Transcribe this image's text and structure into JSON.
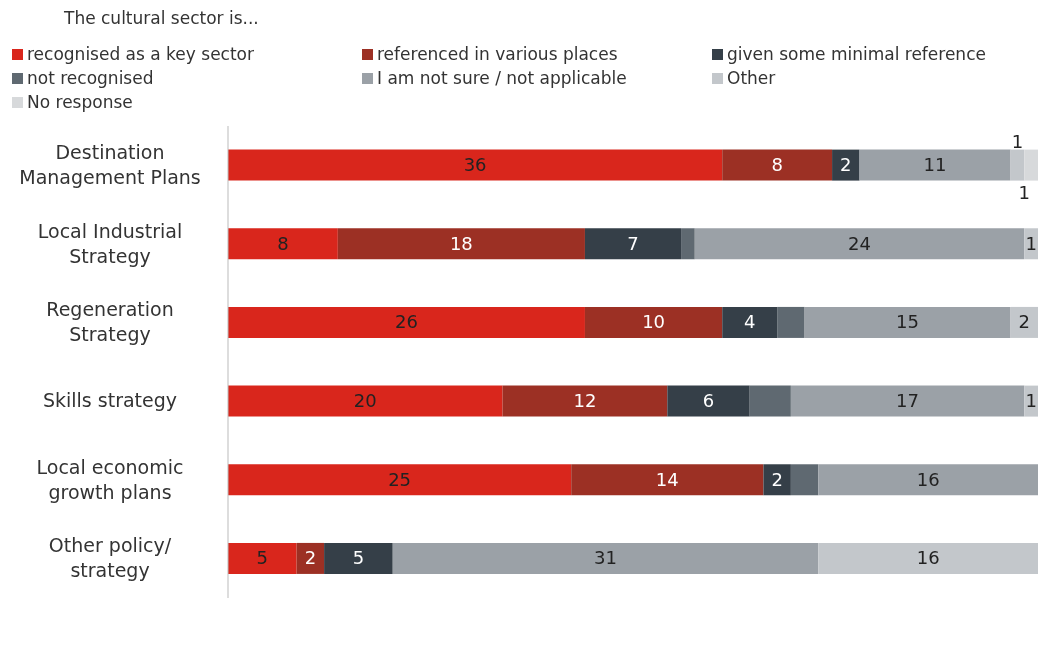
{
  "chart_data": {
    "type": "bar",
    "orientation": "horizontal",
    "stacked": true,
    "title": "The cultural sector is...",
    "legend": "top left",
    "categories": [
      "Destination Management Plans",
      "Local Industrial Strategy",
      "Regeneration Strategy",
      "Skills strategy",
      "Local economic growth plans",
      "Other policy/ strategy"
    ],
    "series": [
      {
        "name": "recognised as a key sector",
        "color": "#d9261c",
        "values": [
          36,
          8,
          26,
          20,
          25,
          5
        ],
        "value_labels": [
          "36",
          "8",
          "26",
          "20",
          "25",
          "5"
        ]
      },
      {
        "name": "referenced in various places",
        "color": "#9c3024",
        "values": [
          8,
          18,
          10,
          12,
          14,
          2
        ],
        "value_labels": [
          "8",
          "18",
          "10",
          "12",
          "14",
          "2"
        ]
      },
      {
        "name": "given some minimal reference",
        "color": "#353f48",
        "values": [
          2,
          7,
          4,
          6,
          2,
          5
        ],
        "value_labels": [
          "2",
          "7",
          "4",
          "6",
          "2",
          "5"
        ]
      },
      {
        "name": "not recognised",
        "color": "#5f6971",
        "values": [
          null,
          1,
          2,
          3,
          2,
          null
        ],
        "value_labels": [
          null,
          null,
          null,
          null,
          null,
          null
        ]
      },
      {
        "name": "I am not sure / not applicable",
        "color": "#9ba1a7",
        "values": [
          11,
          24,
          15,
          17,
          16,
          31
        ],
        "value_labels": [
          "11",
          "24",
          "15",
          "17",
          "16",
          "31"
        ]
      },
      {
        "name": "Other",
        "color": "#c3c7cb",
        "values": [
          1,
          1,
          2,
          1,
          null,
          16
        ],
        "value_labels": [
          "1",
          "1",
          "2",
          "1",
          null,
          "16"
        ]
      },
      {
        "name": "No response",
        "color": "#d7d9db",
        "values": [
          1,
          null,
          null,
          null,
          null,
          null
        ],
        "value_labels": [
          "1",
          null,
          null,
          null,
          null,
          null
        ]
      }
    ]
  }
}
